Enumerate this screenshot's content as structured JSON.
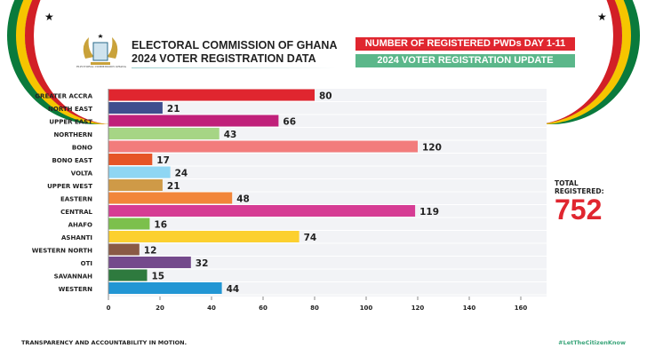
{
  "header": {
    "org": "ELECTORAL COMMISSION OF GHANA",
    "subtitle": "2024 VOTER REGISTRATION DATA",
    "logo_text": "ELECTORAL COMMISSION GHANA",
    "badge1": "NUMBER OF REGISTERED PWDs DAY 1-11",
    "badge2": "2024 VOTER REGISTRATION UPDATE",
    "badge1_color": "#e0262f",
    "badge2_color": "#5bb78a"
  },
  "total": {
    "label": "TOTAL REGISTERED:",
    "value": "752",
    "color": "#e0262f"
  },
  "footer": {
    "left": "TRANSPARENCY AND ACCOUNTABILITY IN MOTION.",
    "right": "#LetTheCitizenKnow"
  },
  "chart_data": {
    "type": "bar",
    "orientation": "horizontal",
    "title": "",
    "xlabel": "",
    "ylabel": "",
    "xlim": [
      0,
      160
    ],
    "grid": true,
    "xticks": [
      0,
      20,
      40,
      60,
      80,
      100,
      120,
      140,
      160
    ],
    "categories": [
      "GREATER ACCRA",
      "NORTH EAST",
      "UPPER EAST",
      "NORTHERN",
      "BONO",
      "BONO EAST",
      "VOLTA",
      "UPPER WEST",
      "EASTERN",
      "CENTRAL",
      "AHAFO",
      "ASHANTI",
      "WESTERN NORTH",
      "OTI",
      "SAVANNAH",
      "WESTERN"
    ],
    "values": [
      80,
      21,
      66,
      43,
      120,
      17,
      24,
      21,
      48,
      119,
      16,
      74,
      12,
      32,
      15,
      44
    ],
    "colors": [
      "#e0262f",
      "#3f4e8e",
      "#c0207a",
      "#a6d585",
      "#f27c7c",
      "#e65526",
      "#8fd6f3",
      "#cf9a47",
      "#f2863a",
      "#d63c94",
      "#7cc04c",
      "#fcd02f",
      "#8a5a45",
      "#744a8c",
      "#2e7a3e",
      "#2296d4"
    ]
  }
}
